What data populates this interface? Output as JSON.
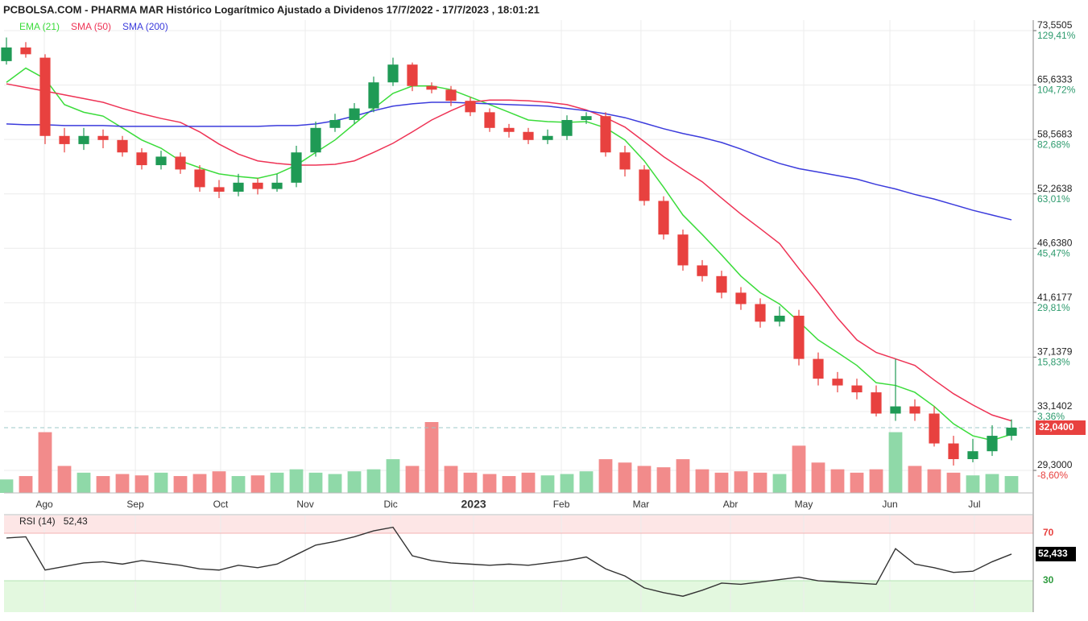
{
  "chart_data": {
    "type": "candlestick",
    "title": "PCBOLSA.COM - PHARMA MAR Histórico Logarítmico Ajustado a Dividenos 17/7/2022 - 17/7/2023 , 18:01:21",
    "log_y": true,
    "grid": true,
    "ylim": [
      27.95,
      75.18
    ],
    "yticks": [
      {
        "value": 73.5505,
        "label": "73,5505"
      },
      {
        "value": 65.6333,
        "label": "65,6333"
      },
      {
        "value": 58.5683,
        "label": "58,5683"
      },
      {
        "value": 52.2638,
        "label": "52,2638"
      },
      {
        "value": 46.638,
        "label": "46,6380"
      },
      {
        "value": 41.6177,
        "label": "41,6177"
      },
      {
        "value": 37.1379,
        "label": "37,1379"
      },
      {
        "value": 33.1402,
        "label": "33,1402"
      },
      {
        "value": 29.3,
        "label": "29,3000"
      }
    ],
    "yticks_pct": [
      {
        "value": 129.41,
        "label": "129,41%"
      },
      {
        "value": 104.72,
        "label": "104,72%"
      },
      {
        "value": 82.68,
        "label": "82,68%"
      },
      {
        "value": 63.01,
        "label": "63,01%"
      },
      {
        "value": 45.47,
        "label": "45,47%"
      },
      {
        "value": 29.81,
        "label": "29,81%"
      },
      {
        "value": 15.83,
        "label": "15,83%"
      },
      {
        "value": 3.36,
        "label": "3,36%"
      },
      {
        "value": -8.6,
        "label": "-8,60%"
      }
    ],
    "xlim": [
      -0.125,
      53.125
    ],
    "xticks": [
      {
        "value": 1.96,
        "label": "Ago"
      },
      {
        "value": 6.67,
        "label": "Sep"
      },
      {
        "value": 11.08,
        "label": "Oct"
      },
      {
        "value": 15.46,
        "label": "Nov"
      },
      {
        "value": 19.88,
        "label": "Dic"
      },
      {
        "value": 24.17,
        "label": "2023"
      },
      {
        "value": 28.71,
        "label": "Feb"
      },
      {
        "value": 32.83,
        "label": "Mar"
      },
      {
        "value": 37.46,
        "label": "Abr"
      },
      {
        "value": 41.25,
        "label": "May"
      },
      {
        "value": 45.71,
        "label": "Jun"
      },
      {
        "value": 50.08,
        "label": "Jul"
      }
    ],
    "ohlc": {
      "up_color": "#1f9a55",
      "down_color": "#e8413f",
      "open": [
        69,
        71,
        69.5,
        59,
        58,
        59,
        58.5,
        57,
        55.5,
        56.5,
        55,
        53,
        52.5,
        53.5,
        52.8,
        53.5,
        57,
        60,
        61,
        62.5,
        66,
        68.5,
        65.5,
        65,
        63.5,
        62,
        60,
        59.5,
        58.5,
        59,
        61,
        61.5,
        57,
        55,
        51.5,
        48,
        45,
        44,
        42.5,
        41.5,
        40,
        40.5,
        37,
        35.5,
        35,
        34.5,
        33,
        33.5,
        33,
        31,
        30,
        30.5,
        31.5
      ],
      "high": [
        72.5,
        71.8,
        70,
        60,
        60,
        59.8,
        59,
        57.5,
        57.2,
        57,
        55.5,
        53.8,
        54.5,
        54,
        54.5,
        57.8,
        60.8,
        61.8,
        63.2,
        66.8,
        69.5,
        68.8,
        66,
        65.5,
        64,
        62.5,
        60.5,
        60,
        59.8,
        61.6,
        62,
        62,
        57.8,
        55.5,
        52,
        48.5,
        45.5,
        44.5,
        43,
        42,
        41.3,
        41,
        37.5,
        36,
        35.5,
        35,
        37,
        34,
        33.5,
        31.5,
        31.3,
        32.2,
        32.6
      ],
      "low": [
        68.5,
        69.5,
        58,
        57,
        57.3,
        57.5,
        56.5,
        55,
        55,
        54.5,
        52.5,
        51.8,
        52,
        52.2,
        52.5,
        53,
        56.5,
        59.5,
        60.5,
        62,
        65.5,
        64.8,
        64.5,
        62.8,
        61.5,
        59.5,
        58.8,
        58,
        58,
        58.5,
        60.5,
        56.5,
        54.2,
        51,
        47.5,
        44.5,
        43.5,
        42,
        41,
        39.5,
        39.6,
        36.5,
        35,
        34.5,
        34,
        32.8,
        32.5,
        32.5,
        30.8,
        29.6,
        29.8,
        30.2,
        31.2
      ],
      "close": [
        71,
        70,
        59,
        58,
        59,
        58.5,
        57,
        55.5,
        56.5,
        55,
        53,
        52.5,
        53.5,
        52.8,
        53.5,
        57,
        60,
        61,
        62.5,
        66,
        68.5,
        65.5,
        65,
        63.5,
        62,
        60,
        59.5,
        58.5,
        59,
        61,
        61.5,
        57,
        55,
        51.5,
        48,
        45,
        44,
        42.5,
        41.5,
        40,
        40.5,
        37,
        35.5,
        35,
        34.5,
        33,
        33.5,
        33,
        31,
        30,
        30.5,
        31.5,
        32.04
      ]
    },
    "volume": {
      "up_color": "#8fd9a8",
      "down_color": "#f28b8b",
      "values": [
        200,
        250,
        900,
        400,
        300,
        250,
        280,
        260,
        300,
        250,
        280,
        320,
        250,
        260,
        300,
        350,
        300,
        280,
        320,
        350,
        500,
        400,
        1050,
        400,
        300,
        280,
        250,
        300,
        260,
        280,
        320,
        500,
        450,
        400,
        380,
        500,
        350,
        300,
        320,
        300,
        280,
        700,
        450,
        350,
        300,
        350,
        900,
        400,
        350,
        300,
        260,
        280,
        250
      ]
    },
    "overlays": [
      {
        "name": "EMA (21)",
        "color": "#3bdc3b",
        "values": [
          66,
          68,
          66.5,
          63,
          62,
          61.5,
          60,
          58.5,
          57.5,
          56,
          55.2,
          54.5,
          54.2,
          54,
          54.5,
          55.5,
          57,
          58.5,
          60.5,
          62.5,
          64.5,
          65.5,
          65.5,
          65,
          64,
          63,
          62,
          61,
          60.8,
          60.7,
          60.8,
          60,
          58.5,
          56,
          53,
          50,
          48,
          46,
          44,
          42.5,
          41.5,
          40,
          38.5,
          37.5,
          36.5,
          35.2,
          35,
          34.5,
          33.5,
          32.3,
          31.5,
          31.2,
          31.6
        ]
      },
      {
        "name": "SMA (50)",
        "color": "#ee3355",
        "values": [
          65.8,
          65.3,
          64.8,
          64.3,
          63.8,
          63.3,
          62.5,
          61.8,
          61.2,
          60.7,
          59.5,
          58,
          56.8,
          56,
          55.7,
          55.5,
          55.5,
          55.6,
          56,
          57,
          58.1,
          59.5,
          61,
          62.2,
          63.3,
          63.6,
          63.6,
          63.5,
          63.3,
          63,
          62.3,
          61.3,
          60.1,
          58.3,
          56.5,
          55,
          53.6,
          51.8,
          50.1,
          48.6,
          47.1,
          44.7,
          42.5,
          40.3,
          38.5,
          37.5,
          37,
          36.5,
          35.4,
          34.4,
          33.6,
          32.9,
          32.5
        ]
      },
      {
        "name": "SMA (200)",
        "color": "#3b3bdc",
        "values": [
          60.5,
          60.4,
          60.4,
          60.3,
          60.3,
          60.3,
          60.2,
          60.2,
          60.2,
          60.2,
          60.2,
          60.2,
          60.2,
          60.2,
          60.3,
          60.3,
          60.5,
          60.9,
          61.5,
          62.2,
          62.8,
          63.1,
          63.3,
          63.3,
          63.2,
          63.1,
          63,
          62.9,
          62.8,
          62.5,
          62.2,
          61.8,
          61.3,
          60.6,
          59.9,
          59.3,
          58.8,
          58.2,
          57.4,
          56.5,
          55.7,
          55.1,
          54.7,
          54.3,
          53.9,
          53.3,
          52.8,
          52.2,
          51.7,
          51.1,
          50.5,
          50,
          49.5
        ]
      }
    ],
    "last_price": {
      "value": 32.04,
      "label": "32,0400",
      "color": "#e8413f"
    },
    "rsi": {
      "name": "RSI (14)",
      "header_value": {
        "value": 52.43,
        "label": "52,43"
      },
      "last_tag": {
        "value": 52.433,
        "label": "52,433"
      },
      "color": "#333333",
      "ylim": [
        3.6,
        84.9
      ],
      "yticks": [
        70,
        30
      ],
      "overbought_color": "#fde6e6",
      "oversold_color": "#e3f8df",
      "values": [
        66,
        67,
        39,
        42,
        45,
        46,
        44,
        47,
        45,
        43,
        40,
        39,
        43,
        41,
        44,
        52,
        60,
        63,
        67,
        72,
        75,
        51,
        47,
        45,
        44,
        43,
        44,
        43,
        45,
        47,
        50,
        40,
        34,
        24,
        20,
        17,
        22,
        28,
        27,
        29,
        31,
        33,
        30,
        29,
        28,
        27,
        57,
        44,
        41,
        37,
        38,
        46,
        52.433
      ]
    }
  }
}
